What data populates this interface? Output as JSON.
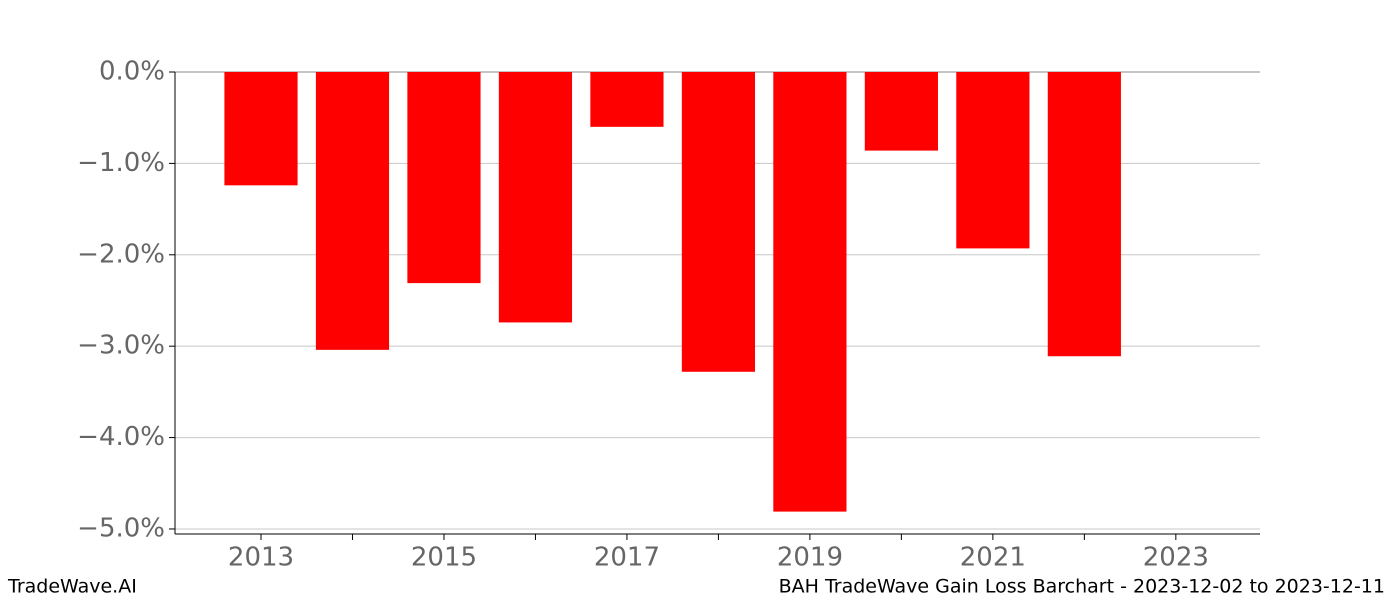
{
  "chart_data": {
    "type": "bar",
    "title": "BAH TradeWave Gain Loss Barchart - 2023-12-02 to 2023-12-11",
    "source": "TradeWave.AI",
    "x": [
      2013,
      2014,
      2015,
      2016,
      2017,
      2018,
      2019,
      2020,
      2021,
      2022
    ],
    "values": [
      -1.24,
      -3.04,
      -2.31,
      -2.74,
      -0.6,
      -3.28,
      -4.81,
      -0.86,
      -1.93,
      -3.11
    ],
    "color": "#ff0000",
    "bar_width": 0.8,
    "xlim": [
      2012.06,
      2023.92
    ],
    "xticks": [
      2013,
      2015,
      2017,
      2019,
      2021,
      2023
    ],
    "minor_xticks": [
      2014,
      2016,
      2018,
      2020,
      2022
    ],
    "ylim": [
      -5.055,
      0
    ],
    "yticks": [
      {
        "value": 0,
        "label": "0.0%"
      },
      {
        "value": -1,
        "label": "−1.0%"
      },
      {
        "value": -2,
        "label": "−2.0%"
      },
      {
        "value": -3,
        "label": "−3.0%"
      },
      {
        "value": -4,
        "label": "−4.0%"
      },
      {
        "value": -5,
        "label": "−5.0%"
      }
    ],
    "grid": true
  }
}
